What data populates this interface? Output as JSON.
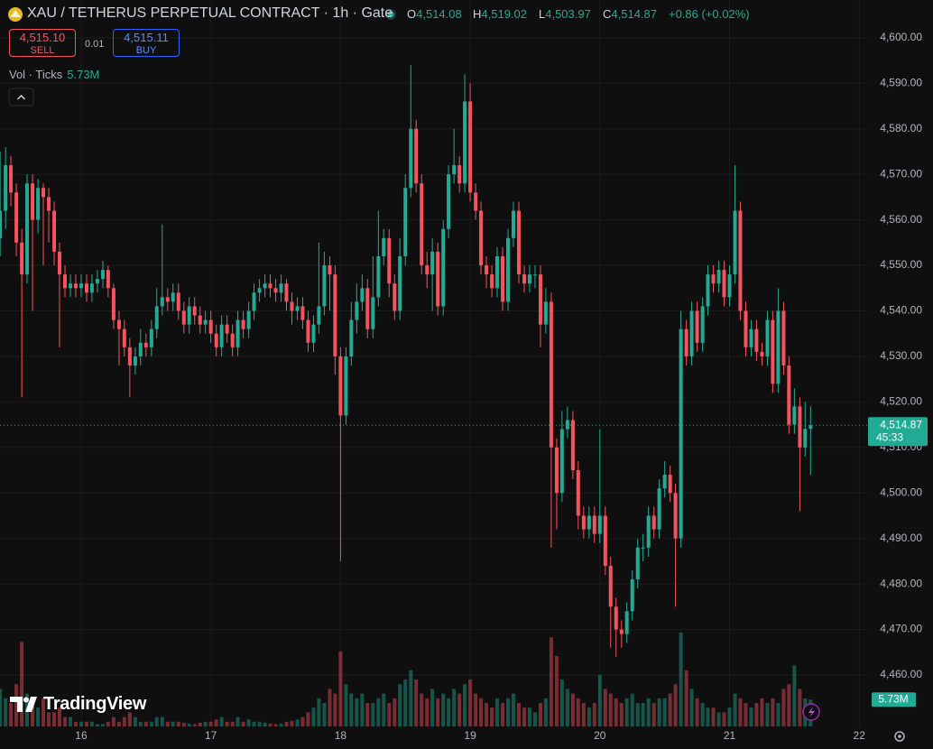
{
  "header": {
    "title": "XAU / TETHERUS PERPETUAL CONTRACT · 1h · Gate",
    "ohlc": [
      {
        "key": "O",
        "value": "4,514.08"
      },
      {
        "key": "H",
        "value": "4,519.02"
      },
      {
        "key": "L",
        "value": "4,503.97"
      },
      {
        "key": "C",
        "value": "4,514.87"
      }
    ],
    "change": "+0.86 (+0.02%)",
    "sell": {
      "price": "4,515.10",
      "label": "SELL"
    },
    "spread": "0.01",
    "buy": {
      "price": "4,515.11",
      "label": "BUY"
    },
    "volume_indicator": {
      "label": "Vol · Ticks",
      "value": "5.73M"
    },
    "brand": "TradingView"
  },
  "chart_data": {
    "type": "candlestick",
    "up_color": "#22ab94",
    "down_color": "#f7525f",
    "grid": true,
    "xlim": [
      15.374,
      22.068
    ],
    "xticks": [
      16,
      17,
      18,
      19,
      20,
      21,
      22
    ],
    "ylim": [
      4448.7,
      4608.3
    ],
    "yticks": [
      {
        "value": 4460,
        "label": "4,460.00"
      },
      {
        "value": 4470,
        "label": "4,470.00"
      },
      {
        "value": 4480,
        "label": "4,480.00"
      },
      {
        "value": 4490,
        "label": "4,490.00"
      },
      {
        "value": 4500,
        "label": "4,500.00"
      },
      {
        "value": 4510,
        "label": "4,510.00"
      },
      {
        "value": 4520,
        "label": "4,520.00"
      },
      {
        "value": 4530,
        "label": "4,530.00"
      },
      {
        "value": 4540,
        "label": "4,540.00"
      },
      {
        "value": 4550,
        "label": "4,550.00"
      },
      {
        "value": 4560,
        "label": "4,560.00"
      },
      {
        "value": 4570,
        "label": "4,570.00"
      },
      {
        "value": 4580,
        "label": "4,580.00"
      },
      {
        "value": 4590,
        "label": "4,590.00"
      },
      {
        "value": 4600,
        "label": "4,600.00"
      }
    ],
    "volume_lim": [
      0,
      40
    ],
    "last_price": {
      "value": 4514.87,
      "label": "4,514.87"
    },
    "countdown": "45:33",
    "volume_label": {
      "value": 5.73,
      "label": "5.73M"
    },
    "x": [
      15.375,
      15.417,
      15.458,
      15.5,
      15.542,
      15.583,
      15.625,
      15.667,
      15.708,
      15.75,
      15.792,
      15.833,
      15.875,
      15.917,
      15.958,
      16,
      16.042,
      16.083,
      16.125,
      16.167,
      16.208,
      16.25,
      16.292,
      16.333,
      16.375,
      16.417,
      16.458,
      16.5,
      16.542,
      16.583,
      16.625,
      16.667,
      16.708,
      16.75,
      16.792,
      16.833,
      16.875,
      16.917,
      16.958,
      17,
      17.042,
      17.083,
      17.125,
      17.167,
      17.208,
      17.25,
      17.292,
      17.333,
      17.375,
      17.417,
      17.458,
      17.5,
      17.542,
      17.583,
      17.625,
      17.667,
      17.708,
      17.75,
      17.792,
      17.833,
      17.875,
      17.917,
      17.958,
      18,
      18.042,
      18.083,
      18.125,
      18.167,
      18.208,
      18.25,
      18.292,
      18.333,
      18.375,
      18.417,
      18.458,
      18.5,
      18.542,
      18.583,
      18.625,
      18.667,
      18.708,
      18.75,
      18.792,
      18.833,
      18.875,
      18.917,
      18.958,
      19,
      19.042,
      19.083,
      19.125,
      19.167,
      19.208,
      19.25,
      19.292,
      19.333,
      19.375,
      19.417,
      19.458,
      19.5,
      19.542,
      19.583,
      19.625,
      19.667,
      19.708,
      19.75,
      19.792,
      19.833,
      19.875,
      19.917,
      19.958,
      20,
      20.042,
      20.083,
      20.125,
      20.167,
      20.208,
      20.25,
      20.292,
      20.333,
      20.375,
      20.417,
      20.458,
      20.5,
      20.542,
      20.583,
      20.625,
      20.667,
      20.708,
      20.75,
      20.792,
      20.833,
      20.875,
      20.917,
      20.958,
      21,
      21.042,
      21.083,
      21.125,
      21.167,
      21.208,
      21.25,
      21.292,
      21.333,
      21.375,
      21.417,
      21.458,
      21.5,
      21.542,
      21.583,
      21.625
    ],
    "open": [
      4556,
      4562,
      4572,
      4566,
      4555,
      4548,
      4568,
      4560,
      4567,
      4565,
      4562,
      4553,
      4548,
      4545,
      4546,
      4545,
      4546,
      4544,
      4546,
      4547,
      4549,
      4545,
      4538,
      4536,
      4532,
      4528,
      4530,
      4533,
      4532,
      4536,
      4541,
      4543,
      4542,
      4544,
      4540,
      4537,
      4541,
      4539,
      4537,
      4538,
      4535,
      4532,
      4537,
      4535,
      4532,
      4538,
      4536,
      4540,
      4544,
      4545,
      4546,
      4545,
      4544,
      4546,
      4542,
      4540,
      4541,
      4538,
      4533,
      4537,
      4541,
      4550,
      4548,
      4530,
      4517,
      4530,
      4538,
      4542,
      4545,
      4536,
      4543,
      4552,
      4556,
      4546,
      4540,
      4552,
      4567,
      4580,
      4568,
      4550,
      4548,
      4553,
      4541,
      4558,
      4570,
      4572,
      4568,
      4586,
      4566,
      4562,
      4550,
      4548,
      4545,
      4552,
      4542,
      4556,
      4562,
      4548,
      4546,
      4548,
      4548,
      4537,
      4542,
      4510,
      4500,
      4514,
      4516,
      4505,
      4495,
      4492,
      4495,
      4491,
      4495,
      4484,
      4475,
      4470,
      4469,
      4474,
      4481,
      4488,
      4488,
      4495,
      4492,
      4501,
      4504,
      4500,
      4490,
      4536,
      4530,
      4540,
      4533,
      4541,
      4548,
      4546,
      4549,
      4543,
      4548,
      4562,
      4540,
      4532,
      4536,
      4531,
      4530,
      4538,
      4524,
      4540,
      4528,
      4515,
      4519,
      4510,
      4514.08
    ],
    "high": [
      4575,
      4576,
      4574,
      4568,
      4558,
      4570,
      4570,
      4569,
      4568,
      4567,
      4564,
      4555,
      4550,
      4548,
      4548,
      4548,
      4548,
      4548,
      4549,
      4551,
      4550,
      4546,
      4540,
      4538,
      4534,
      4532,
      4536,
      4535,
      4538,
      4545,
      4559,
      4545,
      4546,
      4546,
      4542,
      4543,
      4543,
      4541,
      4540,
      4540,
      4537,
      4539,
      4539,
      4537,
      4540,
      4540,
      4542,
      4546,
      4547,
      4548,
      4548,
      4547,
      4548,
      4547,
      4544,
      4543,
      4543,
      4540,
      4539,
      4555,
      4553,
      4552,
      4550,
      4532,
      4532,
      4542,
      4546,
      4548,
      4547,
      4552,
      4562,
      4558,
      4558,
      4548,
      4556,
      4570,
      4594,
      4582,
      4570,
      4553,
      4556,
      4555,
      4560,
      4572,
      4580,
      4574,
      4592,
      4590,
      4568,
      4564,
      4552,
      4550,
      4554,
      4554,
      4558,
      4564,
      4564,
      4550,
      4550,
      4550,
      4550,
      4545,
      4544,
      4512,
      4518,
      4519,
      4518,
      4507,
      4497,
      4497,
      4497,
      4514,
      4497,
      4486,
      4477,
      4472,
      4476,
      4483,
      4490,
      4491,
      4497,
      4497,
      4503,
      4507,
      4506,
      4502,
      4540,
      4538,
      4542,
      4542,
      4543,
      4550,
      4550,
      4551,
      4551,
      4550,
      4572,
      4564,
      4542,
      4538,
      4538,
      4533,
      4540,
      4540,
      4545,
      4542,
      4530,
      4523,
      4521,
      4520,
      4519.02
    ],
    "low": [
      4552,
      4558,
      4563,
      4552,
      4521,
      4546,
      4540,
      4557,
      4550,
      4555,
      4550,
      4532,
      4543,
      4543,
      4543,
      4543,
      4542,
      4542,
      4544,
      4545,
      4543,
      4536,
      4528,
      4530,
      4521,
      4526,
      4528,
      4530,
      4530,
      4534,
      4539,
      4540,
      4540,
      4538,
      4535,
      4535,
      4537,
      4535,
      4535,
      4533,
      4530,
      4530,
      4533,
      4530,
      4530,
      4534,
      4534,
      4538,
      4542,
      4543,
      4543,
      4542,
      4542,
      4540,
      4537,
      4538,
      4536,
      4531,
      4531,
      4535,
      4539,
      4540,
      4526,
      4485,
      4515,
      4528,
      4535,
      4540,
      4534,
      4534,
      4541,
      4550,
      4543,
      4538,
      4538,
      4550,
      4565,
      4566,
      4548,
      4545,
      4540,
      4539,
      4539,
      4556,
      4568,
      4566,
      4566,
      4564,
      4560,
      4548,
      4545,
      4543,
      4543,
      4540,
      4540,
      4554,
      4546,
      4544,
      4544,
      4545,
      4532,
      4535,
      4488,
      4492,
      4498,
      4512,
      4503,
      4492,
      4490,
      4490,
      4489,
      4489,
      4482,
      4466,
      4464,
      4466,
      4467,
      4472,
      4479,
      4485,
      4486,
      4490,
      4490,
      4499,
      4498,
      4475,
      4488,
      4528,
      4528,
      4531,
      4531,
      4539,
      4544,
      4544,
      4541,
      4541,
      4546,
      4538,
      4530,
      4530,
      4529,
      4528,
      4528,
      4522,
      4522,
      4526,
      4513,
      4513,
      4496,
      4508,
      4503.97
    ],
    "close": [
      4562,
      4572,
      4566,
      4555,
      4548,
      4568,
      4560,
      4567,
      4565,
      4562,
      4553,
      4548,
      4545,
      4546,
      4545,
      4546,
      4544,
      4546,
      4547,
      4549,
      4545,
      4538,
      4536,
      4532,
      4528,
      4530,
      4533,
      4532,
      4536,
      4541,
      4543,
      4542,
      4544,
      4540,
      4537,
      4541,
      4539,
      4537,
      4538,
      4535,
      4532,
      4537,
      4535,
      4532,
      4538,
      4536,
      4540,
      4544,
      4545,
      4546,
      4545,
      4544,
      4546,
      4542,
      4540,
      4541,
      4538,
      4533,
      4537,
      4541,
      4550,
      4548,
      4530,
      4517,
      4530,
      4538,
      4542,
      4545,
      4536,
      4543,
      4552,
      4556,
      4546,
      4540,
      4552,
      4567,
      4580,
      4568,
      4550,
      4548,
      4553,
      4541,
      4558,
      4570,
      4572,
      4568,
      4586,
      4566,
      4562,
      4550,
      4548,
      4545,
      4552,
      4542,
      4556,
      4562,
      4548,
      4546,
      4548,
      4548,
      4537,
      4542,
      4510,
      4500,
      4514,
      4516,
      4505,
      4495,
      4492,
      4495,
      4491,
      4495,
      4484,
      4475,
      4470,
      4469,
      4474,
      4481,
      4488,
      4488,
      4495,
      4492,
      4501,
      4504,
      4500,
      4490,
      4536,
      4530,
      4540,
      4533,
      4541,
      4548,
      4546,
      4549,
      4543,
      4548,
      4562,
      4540,
      4532,
      4536,
      4531,
      4530,
      4538,
      4524,
      4540,
      4528,
      4515,
      4519,
      4510,
      4514.08,
      4514.87
    ],
    "volume": [
      8,
      6,
      5,
      9,
      18,
      7,
      5,
      4,
      6,
      3,
      3,
      4,
      2,
      2,
      1,
      1,
      1,
      1,
      0.5,
      0.5,
      1,
      2,
      1,
      2,
      3,
      2,
      1,
      1,
      1,
      2,
      2,
      1,
      1,
      1,
      0.8,
      0.6,
      0.5,
      0.8,
      1,
      1,
      1.5,
      2,
      1,
      1,
      2,
      1,
      1.5,
      1,
      1,
      0.8,
      0.6,
      0.5,
      0.6,
      1,
      1.2,
      1.5,
      2,
      3,
      4,
      6,
      5,
      8,
      7,
      16,
      9,
      7,
      6,
      7,
      5,
      5,
      6,
      7,
      5,
      6,
      9,
      10,
      12,
      10,
      7,
      6,
      8,
      6,
      7,
      6,
      8,
      7,
      9,
      10,
      7,
      6,
      5,
      4,
      6,
      5,
      6,
      7,
      5,
      4,
      4,
      3,
      5,
      6,
      19,
      15,
      10,
      8,
      7,
      6,
      5,
      4,
      5,
      11,
      8,
      7,
      6,
      5,
      6,
      7,
      5,
      5,
      6,
      5,
      6,
      6,
      7,
      9,
      20,
      12,
      8,
      6,
      5,
      4,
      4,
      3,
      3,
      4,
      7,
      6,
      5,
      4,
      5,
      6,
      5,
      6,
      5,
      8,
      9,
      13,
      8,
      6,
      5.73
    ]
  }
}
